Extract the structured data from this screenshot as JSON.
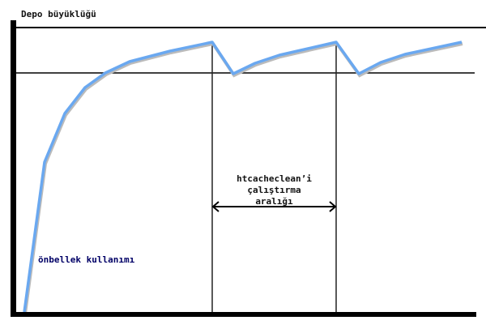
{
  "y_axis_label": "Depo büyüklüğü",
  "curve_label": "önbellek kullanımı",
  "interval_label": [
    "htcacheclean’i",
    "çalıştırma",
    "aralığı"
  ],
  "colors": {
    "curve": "#6aa8f0",
    "axes": "#000000",
    "curve_label": "#000066"
  }
}
